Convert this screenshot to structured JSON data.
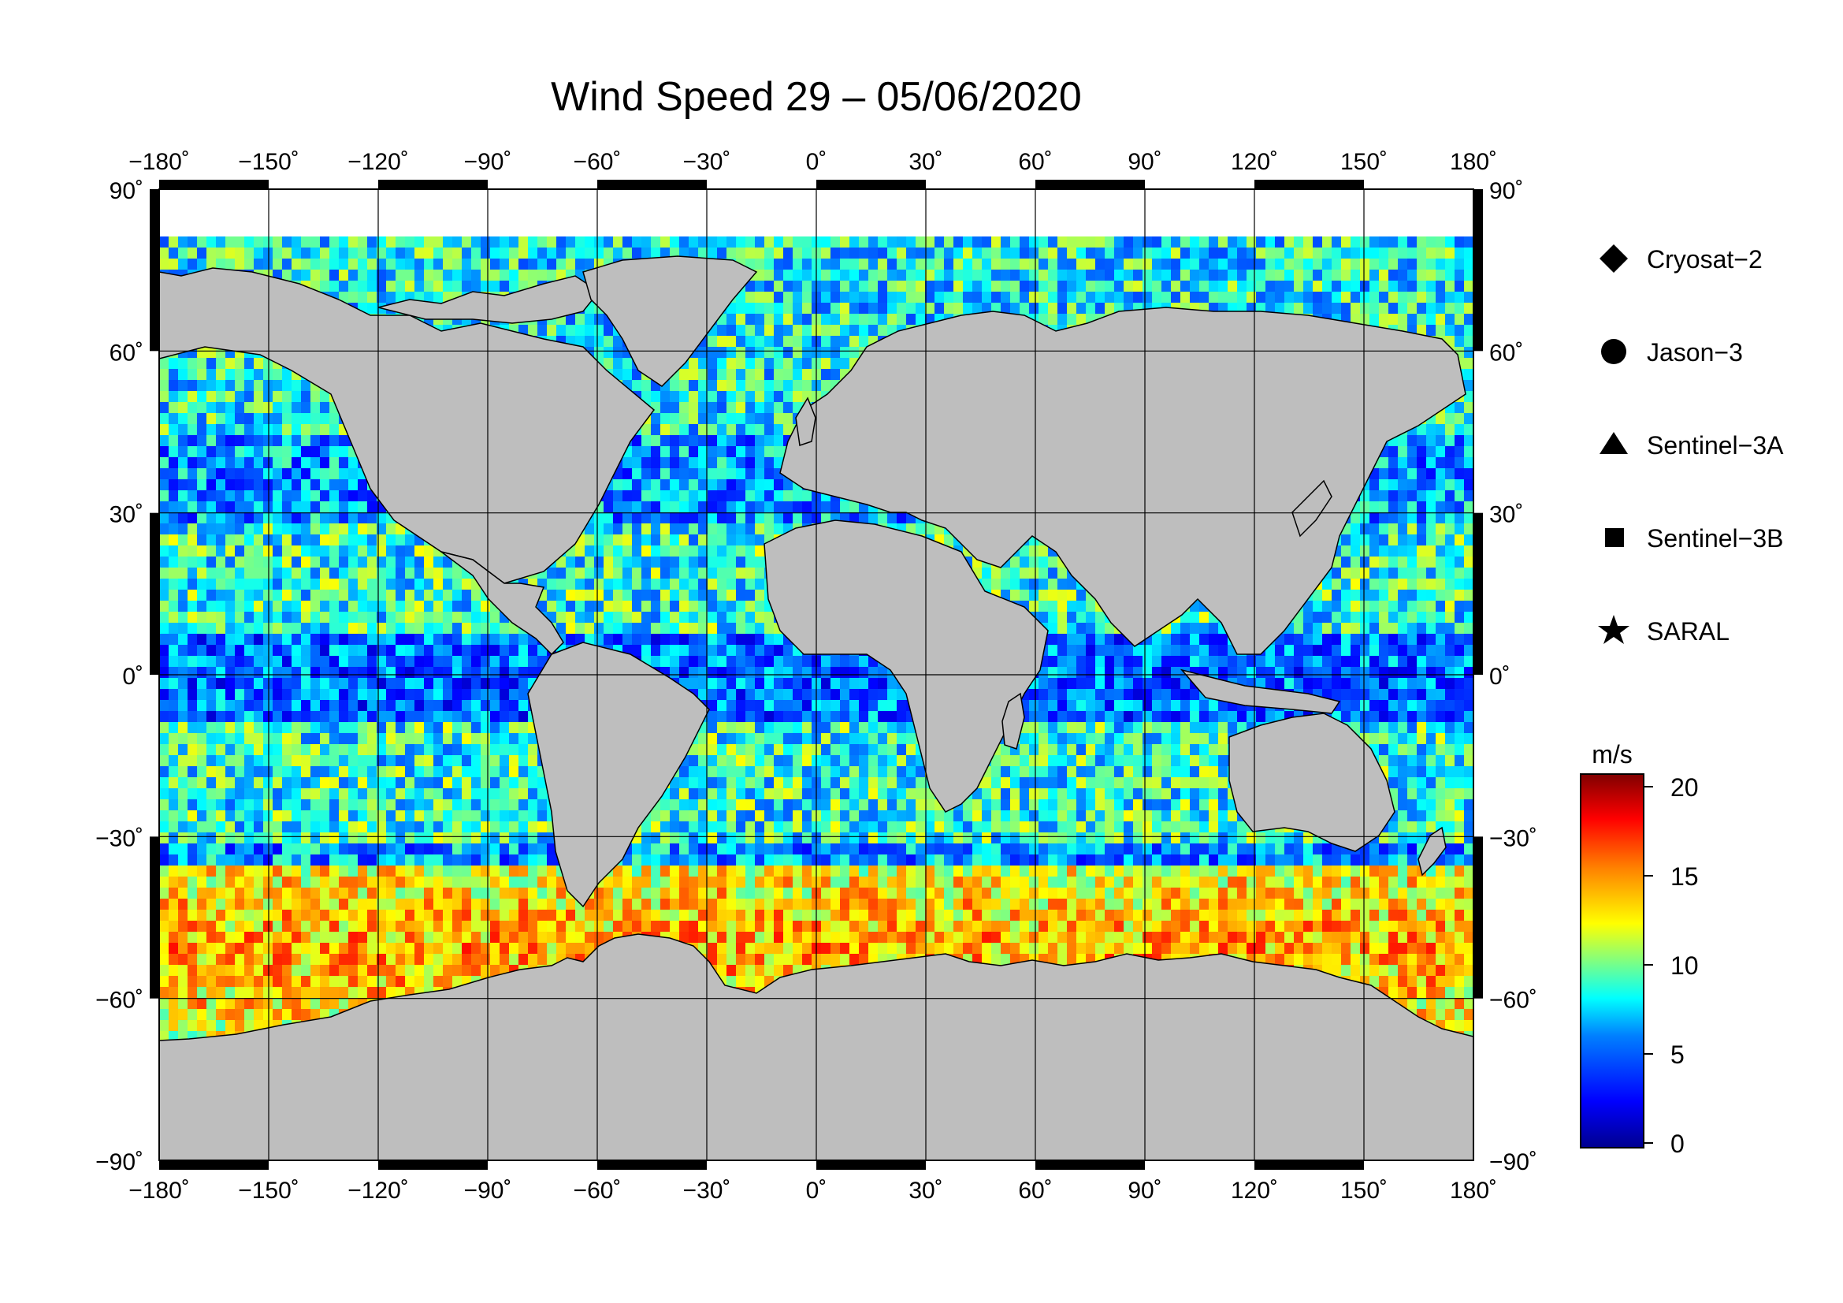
{
  "title": "Wind Speed 29 – 05/06/2020",
  "map": {
    "lon_ticks": [
      "−180˚",
      "−150˚",
      "−120˚",
      "−90˚",
      "−60˚",
      "−30˚",
      "0˚",
      "30˚",
      "60˚",
      "90˚",
      "120˚",
      "150˚",
      "180˚"
    ],
    "lat_ticks_left": [
      "90˚",
      "60˚",
      "30˚",
      "0˚",
      "−30˚",
      "−60˚",
      "−90˚"
    ],
    "lat_ticks_right": [
      "90˚",
      "60˚",
      "30˚",
      "0˚",
      "−30˚",
      "−60˚",
      "−90˚"
    ],
    "land_color": "#bebebe",
    "ice_color": "#ffffff"
  },
  "legend": {
    "items": [
      {
        "label": "Cryosat−2",
        "symbol": "diamond"
      },
      {
        "label": "Jason−3",
        "symbol": "circle"
      },
      {
        "label": "Sentinel−3A",
        "symbol": "triangle"
      },
      {
        "label": "Sentinel−3B",
        "symbol": "square"
      },
      {
        "label": "SARAL",
        "symbol": "star"
      }
    ]
  },
  "colorbar": {
    "unit": "m/s",
    "ticks": [
      "20",
      "15",
      "10",
      "5",
      "0"
    ],
    "colors": [
      "#00008f",
      "#0000ff",
      "#0080ff",
      "#00ffff",
      "#80ff80",
      "#ffff00",
      "#ff8000",
      "#ff0000",
      "#800000"
    ]
  }
}
